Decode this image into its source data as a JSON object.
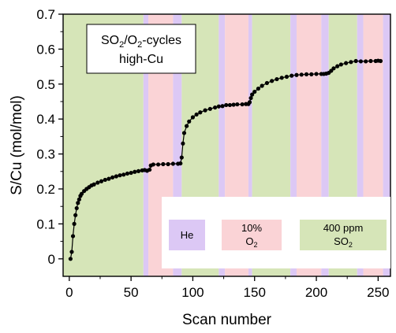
{
  "chart_data": {
    "type": "scatter",
    "xlabel": "Scan number",
    "ylabel": "S/Cu (mol/mol)",
    "xlim": [
      -5,
      260
    ],
    "ylim": [
      -0.05,
      0.7
    ],
    "xticks": [
      0,
      50,
      100,
      150,
      200,
      250
    ],
    "yticks": [
      0.0,
      0.1,
      0.2,
      0.3,
      0.4,
      0.5,
      0.6,
      0.7
    ],
    "ytick_labels": [
      "0",
      "0.1",
      "0.2",
      "0.3",
      "0.4",
      "0.5",
      "0.6",
      "0.7"
    ],
    "grid": false,
    "annotation": {
      "line1_main": "SO",
      "line1_sub1": "2",
      "line1_mid": "/O",
      "line1_sub2": "2",
      "line1_end": "-cycles",
      "line2": "high-Cu"
    },
    "legend": {
      "placement": "bottom-right",
      "items": [
        {
          "key": "he",
          "label": "He",
          "label_line2": "",
          "sub": "",
          "color": "#dcc8f5"
        },
        {
          "key": "o2",
          "label": "10%",
          "label_line2": "O",
          "sub": "2",
          "color": "#fad3d6"
        },
        {
          "key": "so2",
          "label": "400 ppm",
          "label_line2": "SO",
          "sub": "2",
          "color": "#d6e5b8"
        }
      ]
    },
    "gas_phases": [
      {
        "gas": "so2",
        "from": -5,
        "to": 60
      },
      {
        "gas": "he",
        "from": 60,
        "to": 64
      },
      {
        "gas": "o2",
        "from": 64,
        "to": 84
      },
      {
        "gas": "he",
        "from": 84,
        "to": 91
      },
      {
        "gas": "so2",
        "from": 91,
        "to": 121
      },
      {
        "gas": "he",
        "from": 121,
        "to": 126
      },
      {
        "gas": "o2",
        "from": 126,
        "to": 145
      },
      {
        "gas": "he",
        "from": 145,
        "to": 148
      },
      {
        "gas": "so2",
        "from": 148,
        "to": 179
      },
      {
        "gas": "he",
        "from": 179,
        "to": 184
      },
      {
        "gas": "o2",
        "from": 184,
        "to": 204
      },
      {
        "gas": "he",
        "from": 204,
        "to": 210
      },
      {
        "gas": "so2",
        "from": 210,
        "to": 233
      },
      {
        "gas": "he",
        "from": 233,
        "to": 238
      },
      {
        "gas": "o2",
        "from": 238,
        "to": 254
      },
      {
        "gas": "he",
        "from": 254,
        "to": 260
      }
    ],
    "series": [
      {
        "x": [
          1,
          2,
          3,
          4,
          5,
          6,
          7,
          8,
          9,
          10,
          12,
          14,
          16,
          18,
          20,
          23,
          26,
          29,
          32,
          35,
          38,
          41,
          44,
          47,
          50,
          53,
          56,
          59,
          61,
          63,
          65,
          66,
          68,
          72,
          76,
          80,
          84,
          88,
          90,
          91,
          92,
          93,
          95,
          97,
          100,
          103,
          106,
          110,
          114,
          118,
          121,
          124,
          127,
          130,
          133,
          136,
          140,
          143,
          145,
          146,
          147,
          148,
          150,
          153,
          156,
          160,
          164,
          168,
          172,
          176,
          180,
          184,
          188,
          192,
          196,
          200,
          204,
          206,
          208,
          210,
          212,
          214,
          217,
          220,
          224,
          228,
          232,
          236,
          240,
          244,
          248,
          250,
          252
        ],
        "y": [
          0.0,
          0.02,
          0.065,
          0.1,
          0.125,
          0.145,
          0.16,
          0.17,
          0.18,
          0.186,
          0.194,
          0.2,
          0.205,
          0.21,
          0.213,
          0.218,
          0.222,
          0.226,
          0.229,
          0.233,
          0.236,
          0.239,
          0.241,
          0.244,
          0.246,
          0.249,
          0.251,
          0.253,
          0.254,
          0.252,
          0.255,
          0.267,
          0.27,
          0.27,
          0.271,
          0.271,
          0.272,
          0.272,
          0.273,
          0.29,
          0.33,
          0.36,
          0.38,
          0.393,
          0.405,
          0.413,
          0.419,
          0.425,
          0.429,
          0.433,
          0.436,
          0.437,
          0.44,
          0.44,
          0.441,
          0.442,
          0.442,
          0.443,
          0.443,
          0.448,
          0.46,
          0.47,
          0.478,
          0.487,
          0.495,
          0.503,
          0.509,
          0.514,
          0.518,
          0.521,
          0.524,
          0.526,
          0.527,
          0.528,
          0.528,
          0.529,
          0.529,
          0.529,
          0.53,
          0.532,
          0.538,
          0.545,
          0.551,
          0.556,
          0.56,
          0.563,
          0.566,
          0.565,
          0.565,
          0.566,
          0.566,
          0.567,
          0.566
        ]
      }
    ]
  }
}
